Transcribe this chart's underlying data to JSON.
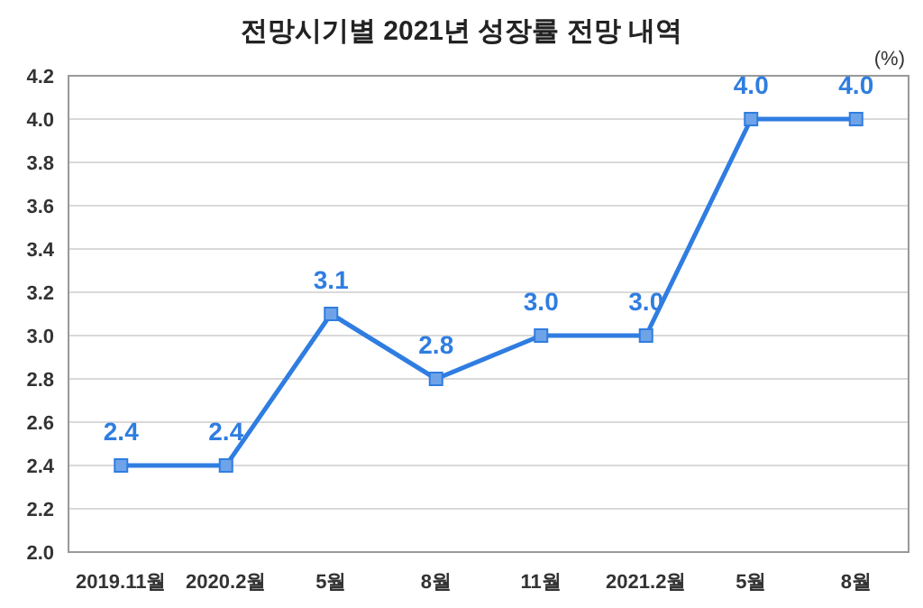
{
  "chart_data": {
    "type": "line",
    "title": "전망시기별 2021년 성장률 전망 내역",
    "categories": [
      "2019.11월",
      "2020.2월",
      "5월",
      "8월",
      "11월",
      "2021.2월",
      "5월",
      "8월"
    ],
    "values": [
      2.4,
      2.4,
      3.1,
      2.8,
      3.0,
      3.0,
      4.0,
      4.0
    ],
    "value_labels": [
      "2.4",
      "2.4",
      "3.1",
      "2.8",
      "3.0",
      "3.0",
      "4.0",
      "4.0"
    ],
    "color": "#2f7de1",
    "marker": "square",
    "grid": "y",
    "ylim": [
      2.0,
      4.2
    ],
    "yticks": [
      {
        "value": 2.0,
        "label": "2.0"
      },
      2.2,
      2.4,
      2.6,
      2.8,
      {
        "value": 3.0,
        "label": "3.0"
      },
      3.2,
      3.4,
      3.6,
      3.8,
      {
        "value": 4.0,
        "label": "4.0"
      },
      4.2
    ],
    "annotations": [
      "(%)"
    ]
  }
}
